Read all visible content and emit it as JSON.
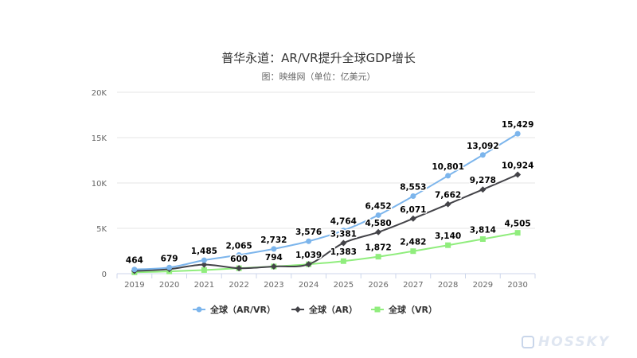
{
  "title": "普华永道：AR/VR提升全球GDP增长",
  "subtitle": "图：映维网（单位：亿美元）",
  "watermark": "HOSSKY",
  "chart_data": {
    "type": "line",
    "title": "普华永道：AR/VR提升全球GDP增长",
    "subtitle": "图：映维网（单位：亿美元）",
    "xlabel": "",
    "ylabel": "",
    "categories": [
      "2019",
      "2020",
      "2021",
      "2022",
      "2023",
      "2024",
      "2025",
      "2026",
      "2027",
      "2028",
      "2029",
      "2030"
    ],
    "ylim": [
      0,
      20000
    ],
    "yticks": [
      0,
      5000,
      10000,
      15000,
      20000
    ],
    "ytick_labels": [
      "0",
      "5K",
      "10K",
      "15K",
      "20K"
    ],
    "grid": true,
    "legend_position": "bottom",
    "series": [
      {
        "name": "全球（AR/VR）",
        "color": "#7cb5ec",
        "marker": "circle",
        "values": [
          464,
          679,
          1485,
          2065,
          2732,
          3576,
          4764,
          6452,
          8553,
          10801,
          13092,
          15429
        ],
        "labels": [
          "464",
          "679",
          "1,485",
          "2,065",
          "2,732",
          "3,576",
          "4,764",
          "6,452",
          "8,553",
          "10,801",
          "13,092",
          "15,429"
        ]
      },
      {
        "name": "全球（AR）",
        "color": "#434348",
        "marker": "diamond",
        "values": [
          300,
          500,
          1000,
          600,
          794,
          1039,
          3381,
          4580,
          6071,
          7662,
          9278,
          10924
        ],
        "labels": [
          null,
          null,
          null,
          "600",
          "794",
          "1,039",
          "3,381",
          "4,580",
          "6,071",
          "7,662",
          "9,278",
          "10,924"
        ]
      },
      {
        "name": "全球（VR）",
        "color": "#90ed7d",
        "marker": "square",
        "values": [
          150,
          250,
          400,
          600,
          794,
          1039,
          1383,
          1872,
          2482,
          3140,
          3814,
          4505
        ],
        "labels": [
          null,
          null,
          null,
          null,
          null,
          null,
          "1,383",
          "1,872",
          "2,482",
          "3,140",
          "3,814",
          "4,505"
        ]
      }
    ]
  }
}
